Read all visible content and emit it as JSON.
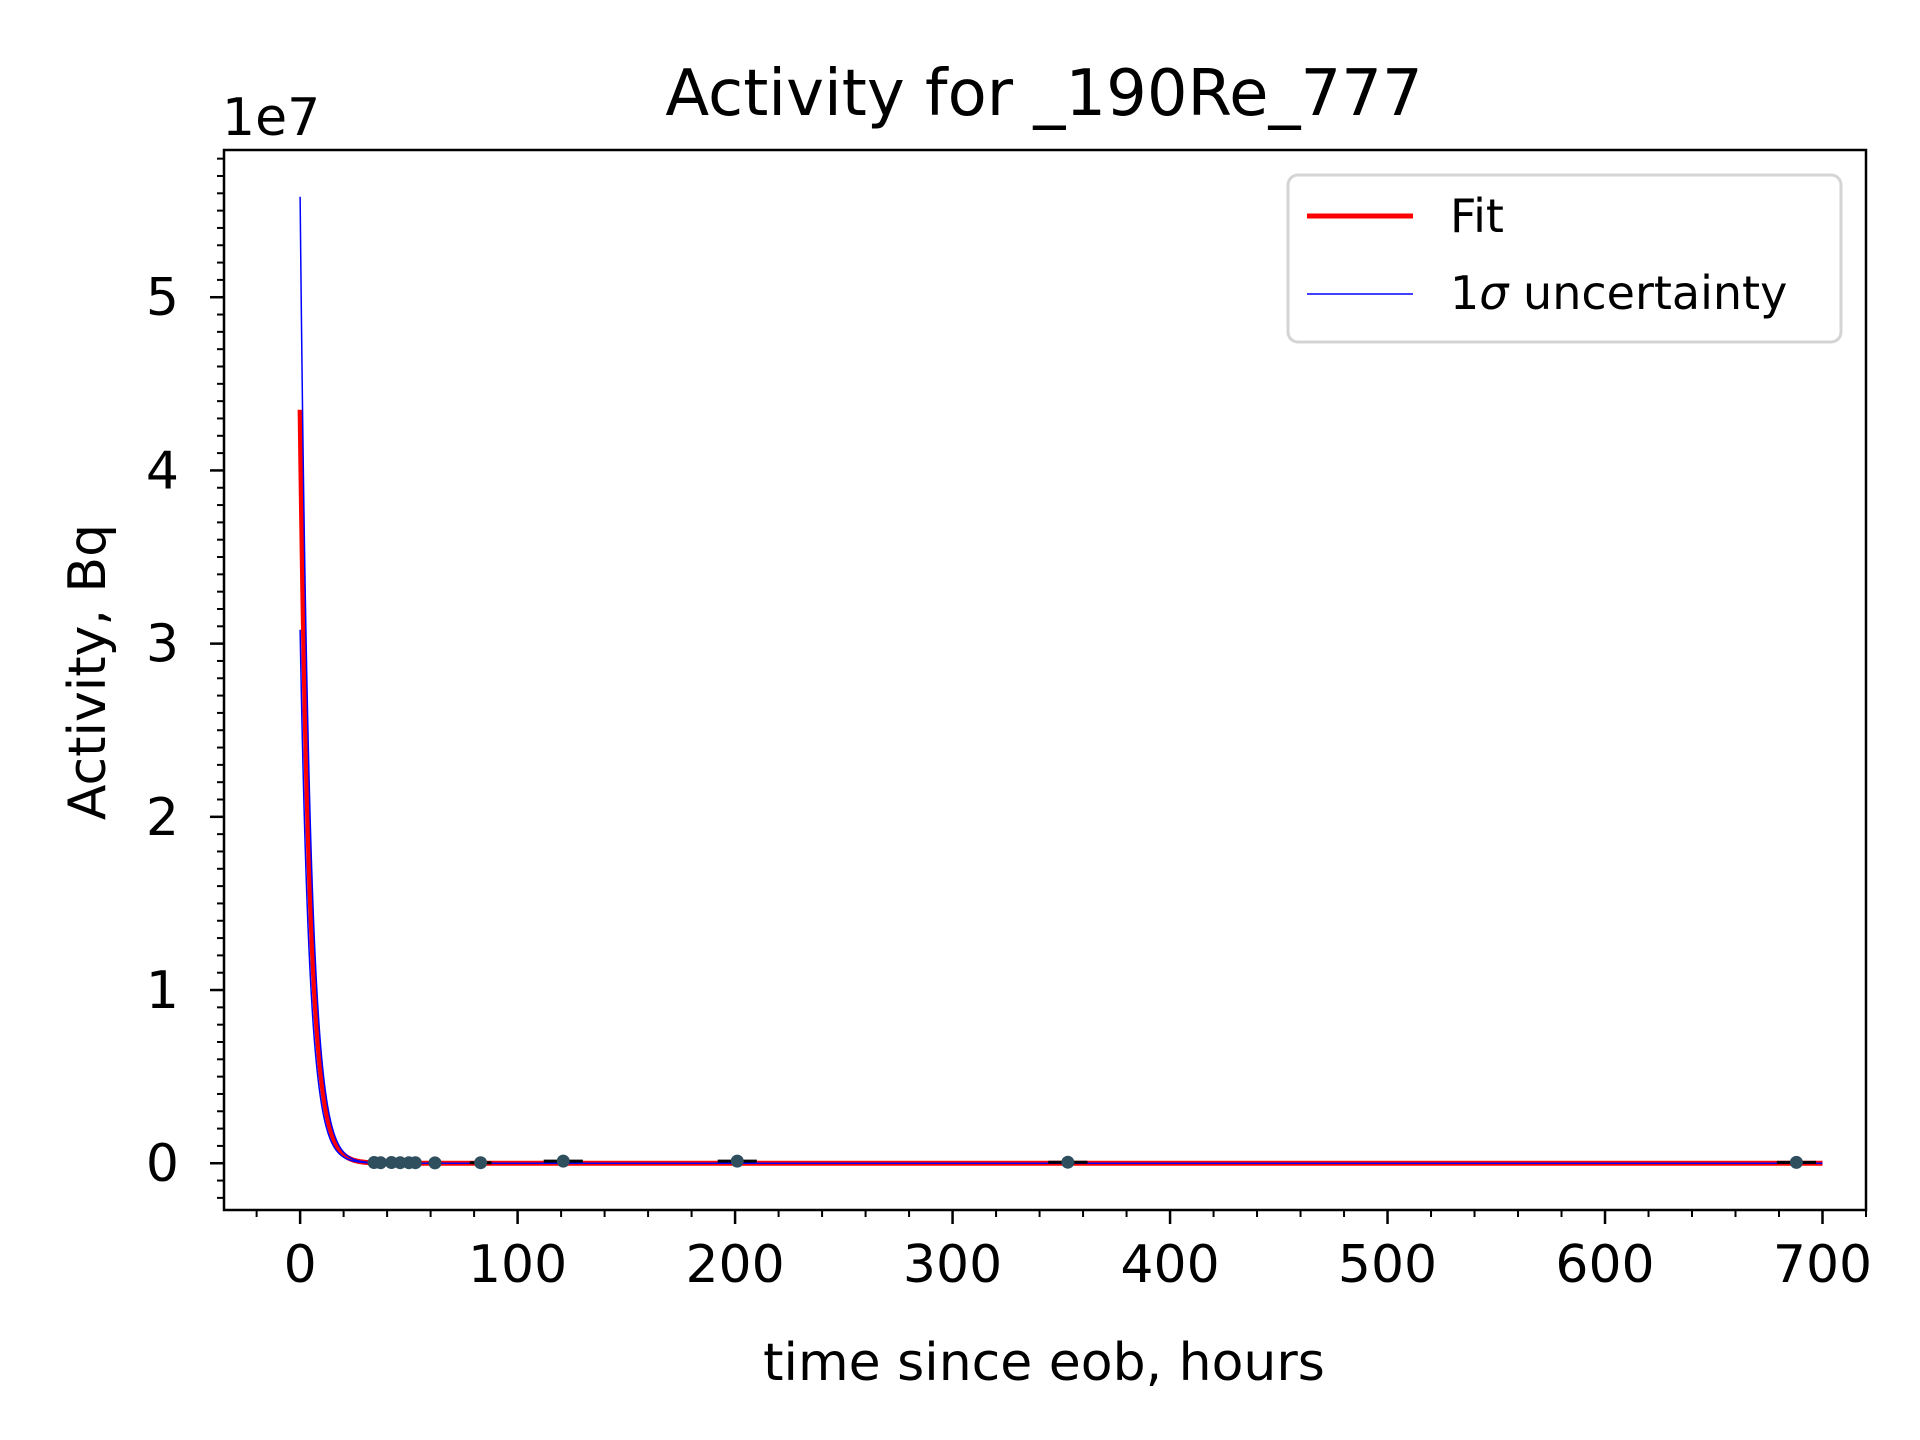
{
  "chart_data": {
    "type": "line",
    "title": "Activity for _190Re_777",
    "xlabel": "time since eob, hours",
    "ylabel": "Activity, Bq",
    "y_offset_label": "1e7",
    "xlim": [
      -35,
      720
    ],
    "ylim": [
      -0.27,
      5.85
    ],
    "y_multiplier": 10000000,
    "x_ticks": [
      0,
      100,
      200,
      300,
      400,
      500,
      600,
      700
    ],
    "x_tick_labels": [
      "0",
      "100",
      "200",
      "300",
      "400",
      "500",
      "600",
      "700"
    ],
    "y_ticks": [
      0,
      1,
      2,
      3,
      4,
      5
    ],
    "y_tick_labels": [
      "0",
      "1",
      "2",
      "3",
      "4",
      "5"
    ],
    "grid": false,
    "legend_position": "top-right",
    "series": [
      {
        "name": "Fit",
        "color": "#ff0000",
        "kind": "exponential-decay",
        "x_start": 0,
        "x_end": 700,
        "initial_value": 4.35,
        "half_life_hours": 3.1
      },
      {
        "name": "1σ uncertainty",
        "color": "#0000ff",
        "kind": "exponential-decay",
        "x_start": 0,
        "x_end": 700,
        "initial_upper": 5.58,
        "initial_lower": 3.08,
        "half_life_hours": 3.1
      }
    ],
    "points": {
      "color": "#2f4f5f",
      "x": [
        34,
        37,
        42,
        46,
        50,
        53,
        62,
        83,
        121,
        201,
        353,
        688
      ],
      "y": [
        0.004,
        0.003,
        0.004,
        0.003,
        0.003,
        0.003,
        0.002,
        0.003,
        0.012,
        0.012,
        0.006,
        0.005
      ],
      "x_err": [
        2,
        2,
        2,
        2,
        2,
        2,
        3,
        5,
        9,
        9,
        9,
        9
      ]
    },
    "legend": [
      {
        "label": "Fit",
        "color": "#ff0000"
      },
      {
        "label": "1σ uncertainty",
        "color": "#0000ff"
      }
    ]
  }
}
